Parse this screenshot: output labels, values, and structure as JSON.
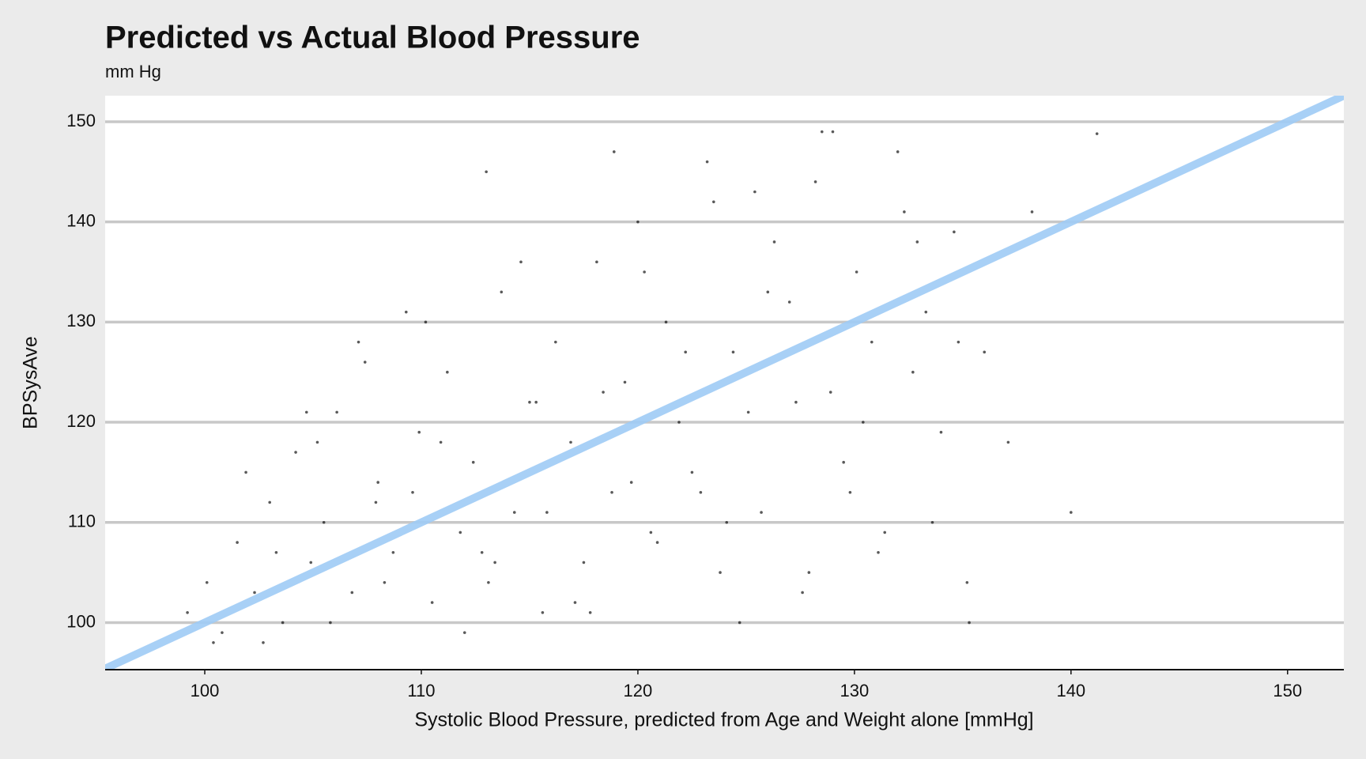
{
  "chart_data": {
    "type": "scatter",
    "title": "Predicted vs Actual Blood Pressure",
    "subtitle": "mm Hg",
    "x_label": "Systolic Blood Pressure, predicted from Age and Weight alone [mmHg]",
    "y_label": "BPSysAve",
    "color": "#000000",
    "x": [
      99.2,
      100.1,
      100.8,
      101.5,
      102.3,
      103.0,
      103.6,
      104.2,
      104.9,
      105.5,
      106.1,
      106.8,
      107.4,
      108.0,
      108.7,
      109.3,
      109.9,
      110.5,
      111.2,
      111.8,
      112.4,
      113.1,
      113.7,
      114.3,
      115.0,
      115.6,
      116.2,
      116.9,
      117.5,
      118.1,
      118.8,
      119.4,
      120.0,
      120.6,
      121.3,
      121.9,
      122.5,
      123.2,
      123.8,
      124.4,
      125.1,
      125.7,
      126.3,
      127.0,
      127.6,
      128.2,
      128.9,
      129.5,
      130.1,
      130.8,
      131.4,
      132.0,
      132.7,
      133.3,
      134.0,
      134.6,
      135.2,
      136.0,
      137.1,
      138.2,
      100.4,
      101.9,
      103.3,
      104.7,
      105.8,
      107.1,
      108.3,
      109.6,
      110.9,
      112.0,
      113.4,
      114.6,
      115.8,
      117.1,
      118.4,
      119.7,
      120.9,
      122.2,
      123.5,
      124.7,
      126.0,
      127.3,
      128.5,
      129.8,
      131.1,
      132.3,
      133.6,
      134.8,
      102.7,
      105.2,
      107.9,
      110.2,
      112.8,
      115.3,
      117.8,
      120.3,
      122.9,
      125.4,
      127.9,
      130.4,
      132.9,
      135.3,
      113.0,
      118.9,
      124.1,
      129.0,
      141.2,
      140.0
    ],
    "values": [
      101,
      104,
      99,
      108,
      103,
      112,
      100,
      117,
      106,
      110,
      121,
      103,
      126,
      114,
      107,
      131,
      119,
      102,
      125,
      109,
      116,
      104,
      133,
      111,
      122,
      101,
      128,
      118,
      106,
      136,
      113,
      124,
      140,
      109,
      130,
      120,
      115,
      146,
      105,
      127,
      121,
      111,
      138,
      132,
      103,
      144,
      123,
      116,
      135,
      128,
      109,
      147,
      125,
      131,
      119,
      139,
      104,
      127,
      118,
      141,
      98,
      115,
      107,
      121,
      100,
      128,
      104,
      113,
      118,
      99,
      106,
      136,
      111,
      102,
      123,
      114,
      108,
      127,
      142,
      100,
      133,
      122,
      149,
      113,
      107,
      141,
      110,
      128,
      98,
      118,
      112,
      130,
      107,
      122,
      101,
      135,
      113,
      143,
      105,
      120,
      138,
      100,
      145,
      147,
      110,
      149,
      148.8,
      111
    ],
    "reference_line": {
      "color": "#9ecbf5",
      "x": [
        95.4,
        152.6
      ],
      "y": [
        95.4,
        152.6
      ]
    },
    "xlim": [
      95.4,
      152.6
    ],
    "ylim": [
      95.3,
      152.6
    ],
    "xticks": [
      100,
      110,
      120,
      130,
      140,
      150
    ],
    "yticks": [
      100,
      110,
      120,
      130,
      140,
      150
    ],
    "grid_y": true
  }
}
